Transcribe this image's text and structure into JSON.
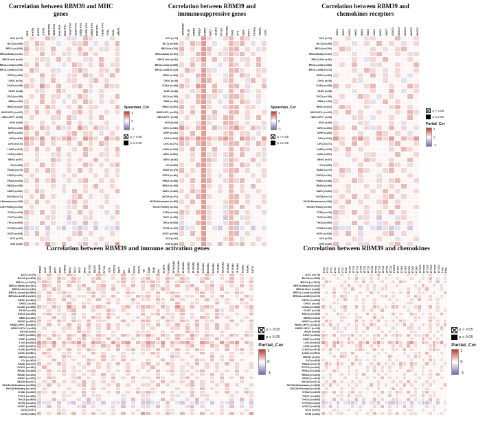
{
  "rows": [
    "ACC (n=79)",
    "BLCA (n=408)",
    "BRCA (n=1100)",
    "BRCA-Basal (n=191)",
    "BRCA-Her2 (n=82)",
    "BRCA-LumA (n=568)",
    "BRCA-LumB (n=219)",
    "CESC (n=306)",
    "CHOL (n=36)",
    "COAD (n=458)",
    "DLBC (n=48)",
    "ESCA (n=185)",
    "GBM (n=153)",
    "HNSC (n=522)",
    "HNSC-HPV- (n=422)",
    "HNSC-HPV+ (n=98)",
    "KICH (n=66)",
    "KIRC (n=533)",
    "KIRP (n=290)",
    "LGG (n=516)",
    "LIHC (n=371)",
    "LUAD (n=515)",
    "LUSC (n=501)",
    "MESO (n=87)",
    "OV (n=303)",
    "PAAD (n=179)",
    "PCPG (n=181)",
    "PRAD (n=498)",
    "READ (n=169)",
    "SARC (n=260)",
    "SKCM (n=471)",
    "SKCM-Metastasis (n=368)",
    "SKCM-Primary (n=103)",
    "STAD (n=415)",
    "TGCT (n=150)",
    "THCA (n=509)",
    "THYM (n=120)",
    "UCEC (n=545)",
    "UCS (n=57)",
    "UVM (n=80)"
  ],
  "legend": {
    "scale_ticks": [
      "1",
      "0",
      "-1"
    ],
    "sig_items": [
      {
        "style": "crossed",
        "label": "p > 0.05"
      },
      {
        "style": "filled",
        "label": "p ≤ 0.05"
      }
    ]
  },
  "colors": {
    "positive": "#c0392b",
    "negative": "#7668ad",
    "mid": "#ffffff"
  },
  "value_encoding": {
    "a": -0.9,
    "b": -0.7,
    "c": -0.5,
    "d": -0.35,
    "e": -0.2,
    "f": -0.05,
    "g": 0.05,
    "h": 0.2,
    "i": 0.35,
    "j": 0.5,
    "k": 0.7,
    "l": 0.9,
    "uppercase": "not significant (p > 0.05), drawn with cross"
  },
  "chart_data": [
    {
      "type": "heatmap",
      "title": "Correlation between RBM39 and MHC genes",
      "legend_title": "Spearman_Cor",
      "sig_position": "below",
      "columns": [
        "B2M",
        "HLA-A",
        "HLA-B",
        "HLA-C",
        "HLA-DMA",
        "HLA-DMB",
        "HLA-DOA",
        "HLA-DOB",
        "HLA-DPA1",
        "HLA-DPB1",
        "HLA-DQA1",
        "HLA-DQA2",
        "HLA-DQB1",
        "HLA-DRA",
        "HLA-DRB1",
        "TAP1",
        "TAP2",
        "TAPBP"
      ],
      "values": [
        "GhgFiHgGhEgIhGgFhg",
        "hgihgGeFghHigEghgi",
        "ighhgiFghgiGhgehgh",
        "hGgiFhgHeghiGhgFgh",
        "GgHhEgiGhFgeHgiGgh",
        "hgighFgegihGhgigeh",
        "gihGgheFghiEggHhgi",
        "hgFighGgehgiHghgig",
        "GHgEFiGgHhFGeIgHFg",
        "ihgjhgiFghighGgihh",
        "FGhEGgIHgFGiEgHGgF",
        "ghFigHhgeGihgFhgGi",
        "hGgighFeghGihgEghg",
        "ighgihgGhgighhgFgi",
        "hgighgiFghighgGhgh",
        "GhgFghHgiEgGhgIFgg",
        "EGgHFeGgIFhGEgGhFG",
        "jhgihgiehgjhgihegh",
        "hgiGhgFghigHhgeghG",
        "jihjgihijhgjihgjhi",
        "ihgighGghFighgihgg",
        "hgighgiFghgihGghgi",
        "gFhGgeHghGgiFghEgh",
        "GgHFgIhGEghFGigHgF",
        "hGgighFghgGihgeghi",
        "ighgihgGhgighFghgh",
        "gHgFghGeghGgFhgHgE",
        "hgighigGhghigFhghg",
        "GghFgHgeFgGhgIgFhG",
        "hgihgGghFighgGhggi",
        "ghgighgFghighgghgF",
        "hgighgGghighgFghgg",
        "GhgFgHgGehgIGghFgH",
        "ihgighgFhgighgGhgi",
        "eGgFhEgGdFgEhGgFeG",
        "hgFighgGehgighFggh",
        "dEeGdFeDgEdeFdGeEd",
        "hgighGgFghighgGghg",
        "GFgHEgGFhGgEFgHGgF",
        "iGhgJhgIFghiGhgHgj"
      ]
    },
    {
      "type": "heatmap",
      "title": "Correlation between RBM39 and immunosuppressive genes",
      "legend_title": "Spearman_Cor",
      "sig_position": "below",
      "columns": [
        "ADORA2A",
        "BTLA",
        "CD160",
        "CD244",
        "CD274",
        "CD96",
        "CSF1R",
        "CTLA4",
        "HAVCR2",
        "IDO1",
        "IL10",
        "KDR",
        "LAG3",
        "PDCD1",
        "TGFB1",
        "TIGIT"
      ],
      "values": [
        "GhgFjHgGhIgIhGgF",
        "hgihjGeFgiHigEgh",
        "ighgjiFghiiGhgeh",
        "hGgijhgHeihiGhgF",
        "GgHhjgiGhIgeHgiG",
        "hgigiFgegihGhgig",
        "gihGjheFgiiEggHh",
        "hgFijhGgeigiHghg",
        "GHgEjiGgHiFGeIgH",
        "ihgjjgiFgiighGgi",
        "FGhEjgIHgIGiEgHG",
        "ghFijHhgeiihgFhg",
        "hGgijhFegiGihgEg",
        "ighgjhgGhiighhgF",
        "hgigjgiFgiighgGh",
        "GhgFjhHgiIgGhgIF",
        "EGgHjeGgIihGEgGh",
        "jhgijgiehijhgihe",
        "hgiGjgFghigHhgeg",
        "jihjjihijigjihgj",
        "ihgijhGghiighgih",
        "hgigjgiFgigihGgh",
        "gFhGjeHghigiFghE",
        "GgHFjIhGEihFGigH",
        "hGgijhFghiGihgeg",
        "ighgjhgGhiighFgh",
        "gHgFjhGegiGgFhgH",
        "hgigjigGhihigFhg",
        "GghFjHgeFiGhgIgF",
        "hgihjGghFighgGhg",
        "ghgijhgFgiighggh",
        "hgigjgGghiighFgh",
        "GhgFjHgGeigIGghF",
        "ihgijhgFhiighgGh",
        "eGgFjEgGdigEhGgF",
        "hgFijhgGeiighgFg",
        "dEeGjFeDgidEFdGe",
        "hgigjGgFgiighgGg",
        "GFgHjgGFhigEFgHG",
        "iGhgjhgIFihiGhgH"
      ]
    },
    {
      "type": "heatmap",
      "title": "Correlation between RBM39 and chemokines  receptors",
      "legend_title": "Partial_Cor",
      "sig_position": "above",
      "columns": [
        "CCR1",
        "CCR2",
        "CCR3",
        "CCR4",
        "CCR5",
        "CCR6",
        "CCR7",
        "CCR8",
        "CCR9",
        "CCR10",
        "CXCR3",
        "CXCR4",
        "CXCR5",
        "CXCR6"
      ],
      "values": [
        "GgHFgEhGgFiGgH",
        "hgGeghFiGhgEgh",
        "gihgFghGeghigF",
        "hGgeFghIgGhgeh",
        "GgFhGeHgIgFGhg",
        "ghgiFgehGghFgi",
        "gFghGihgEghGgh",
        "hgGghFigHghgeG",
        "FGgHEgGFhGgEFg",
        "ighGghiFghGgih",
        "GFgEGgHFgIGEgH",
        "ghFgiHgeGhgFig",
        "hGgFghEgiGhgFg",
        "gihgGhgFghighG",
        "hgighFghGghgih",
        "GgFhHgEgGhFgIg",
        "EGgFHeGgFhGEgG",
        "ihgighehgighge",
        "hgGghFgiHghgeg",
        "jhgijhgihjgihj",
        "ghgiGhgFghiggh",
        "hgighGgFghgihG",
        "gFhGgeHgGgiFgh",
        "GgFHgIhGghFGig",
        "hGgghFghGihgeg",
        "gihgihGghighFg",
        "gHgFhgGegGgFhg",
        "hggihgGhghigFh",
        "GghFgHgeGhgIgF",
        "hghgGghFighgGh",
        "ghgighFghighgg",
        "hgighGghighgFg",
        "GhgFgHgGhgIGgh",
        "ihgighFhgighgG",
        "eGgFhEgdFgEhGg",
        "hgFighGehgighF",
        "dEeGdFeDEdeFdG",
        "hgighGgghighgG",
        "GFgHEgGhGgEFgH",
        "iGhgHhgFghiGhg"
      ]
    },
    {
      "type": "heatmap",
      "title": "Correlation between RBM39 and immune activation  genes",
      "legend_title": "Partial_Cor",
      "sig_position": "above",
      "columns": [
        "BTNL2",
        "CD27",
        "CD276",
        "CD28",
        "CD40",
        "CD40LG",
        "CD48",
        "CD70",
        "CD80",
        "CD86",
        "CXCL12",
        "CXCR4",
        "ENTPD1",
        "HHLA2",
        "ICOS",
        "ICOSLG",
        "IL2RA",
        "IL6",
        "IL6R",
        "KLRC1",
        "KLRK1",
        "LTA",
        "MICB",
        "NT5E",
        "PVR",
        "RAET1E",
        "TMEM173",
        "TNFRSF13B",
        "TNFRSF13C",
        "TNFRSF14",
        "TNFRSF17",
        "TNFRSF18",
        "TNFRSF25",
        "TNFRSF4",
        "TNFRSF8",
        "TNFRSF9",
        "TNFSF13",
        "TNFSF13B",
        "TNFSF14",
        "TNFSF15",
        "TNFSF18",
        "TNFSF4",
        "TNFSF9",
        "ULBP1"
      ],
      "values": [
        "hgiGhgihgFhgiHghgighgF",
        "ighgihgihGghigFhgighgh",
        "hihgighihgFighGghighgi",
        "gihGhgighiFghigHghgigh",
        "GhgihgFghGigHhgiGghgFh",
        "hgighihgGghighFghgihgg",
        "ighFghigHhgighgiFghgih",
        "hgihgighFghGighghgFigh",
        "GgHhgFiGghHgFgiGhGgEhG",
        "ihgihgjhgighihgFghighi",
        "FGhgEGhIgGFhGgiEgHGgFh",
        "ghigHhgighFghgihgGhgFi",
        "hGgighgeghGihgighgFghg",
        "ighgihgihgighhgFgighgi",
        "hgighgighGighgighghFgh",
        "GhgFghHgighGhgIghgFggh",
        "EGgHgeGgIhhGEgGhgFGgHe",
        "jhgihgihgjhgihghgihgih",
        "hgiGhgighigHhgighGghgF",
        "jihjgihijhgjihgjhijgih",
        "ihgighGghighgihgighggh",
        "hgighgighgihGghgighigh",
        "gihGgehghGgighgFghgEgh",
        "GgHgFIhGghgFGighgHgFgG",
        "hGgighghgGihgighgighgF",
        "ighgihgGhgighghgighFgh",
        "gigFghGeghGghgHgFghgGh",
        "hgighighhghigFhghgighg",
        "GghgFHgeghGhgighgFhgGg",
        "hgihgGghighgGhgighgigh",
        "ghgighghgighghghgFghgg",
        "hgighgGghighgghgighFgh",
        "GhggFgHgGhgighGghgFgHg",
        "ihgighghgighgGhgighgih",
        "eGggFhEgGdgEhGgFgeGgFh",
        "hgFighgGhgighgFgghgigh",
        "dEeGdgeDgEdeFdGeEdgeFd",
        "hgighGgghighgGghgighgh",
        "GFggHEgGFhGgEgGHgFgGEg",
        "iGhgihgIghgiGhgHgighgj"
      ]
    },
    {
      "type": "heatmap",
      "title": "Correlation between RBM39 and chemokines",
      "legend_title": "Partial_Cor",
      "sig_position": "above",
      "columns": [
        "CCL1",
        "CCL2",
        "CCL3",
        "CCL4",
        "CCL5",
        "CCL7",
        "CCL8",
        "CCL11",
        "CCL13",
        "CCL14",
        "CCL17",
        "CCL18",
        "CCL19",
        "CCL20",
        "CCL21",
        "CCL22",
        "CCL25",
        "CCL26",
        "CCL28",
        "CX3CL1",
        "CXCL1",
        "CXCL2",
        "CXCL3",
        "CXCL5",
        "CXCL8",
        "CXCL9",
        "CXCL10",
        "CXCL11",
        "CXCL12",
        "CXCL13",
        "CXCL14",
        "CXCL16",
        "XCL1",
        "XCL2"
      ],
      "values": [
        "GgFhgHgEghGgFhgIgGhF",
        "hgGghFghGigEghgHghgg",
        "gihgFghGghgighFghggh",
        "hGgFghgIgGhgeghGghgF",
        "GgFhGgHgIgFGhgEgHhgG",
        "ghgiFghhGghFgighgGgh",
        "gFghGihgghGghgFghigh",
        "hgGghFigghghgGhgFghg",
        "FGgHEgGFgGgEFgHGgFgE",
        "ighGghiFgighGgihghgi",
        "GFgEGgHFgGGEgHFgIGgF",
        "ghFgiHgeghgFighgGgFi",
        "hGgFghEgghhgFgighGgg",
        "gihgGhgFgighGhgighgh",
        "hgighFghghghgihGghgg",
        "GgFhHgEgghFgIgGhgFgH",
        "EGgFHeGgghGEgGFgHgEG",
        "ihgighehighgeghigigh",
        "hgGghFgighgegGhghgFg",
        "jhgijhgihgihjgijhgih",
        "ghgiGhgFghigghghgGgh",
        "hgighGgFghihGgighggh",
        "gFhGgeHgigFghGgEghgg",
        "GgFHgIhGghFGggHgFgIg",
        "hGgghFghgihgeghGgghg",
        "gihgihGgighFghgighgh",
        "gHgFhgGeggGFhgHgEghg",
        "hggihgGhghgFhgighghg",
        "GghFgHgeghgIgFGhgHgF",
        "hghgGghFghgGhghgighg",
        "ghgighFghghggFghgggh",
        "hgighGghghgFgighghgg",
        "GhgFgHgGhgGghFgHgGgI",
        "ihgighFhighgGghgighg",
        "eGgFhEgdgEhGgFgeGgdF",
        "hgFighGegighFgighggh",
        "dEeGdFeDdeFdGeEdgeDd",
        "hgighGgghghgGghgighg",
        "GFgHEgGhGgEFgHGgFgEG",
        "iGhgHhgFghGghgIghgHg"
      ]
    }
  ]
}
